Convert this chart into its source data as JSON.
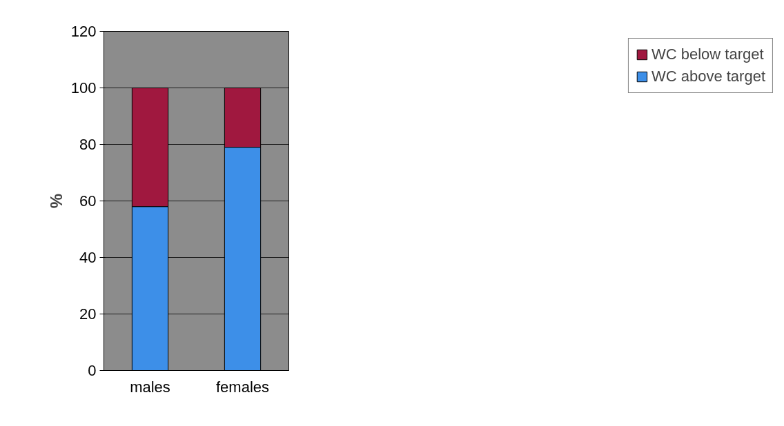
{
  "chart_data": {
    "type": "bar",
    "stacked": true,
    "categories": [
      "males",
      "females"
    ],
    "ylabel": "%",
    "series": [
      {
        "name": "WC above target",
        "color": "#3d8fe8",
        "values": [
          58,
          79
        ]
      },
      {
        "name": "WC below target",
        "color": "#a0183f",
        "values": [
          42,
          21
        ]
      }
    ],
    "ylim": [
      0,
      120
    ],
    "yticks": [
      0,
      20,
      40,
      60,
      80,
      100,
      120
    ],
    "grid": "y",
    "legend": "right"
  }
}
